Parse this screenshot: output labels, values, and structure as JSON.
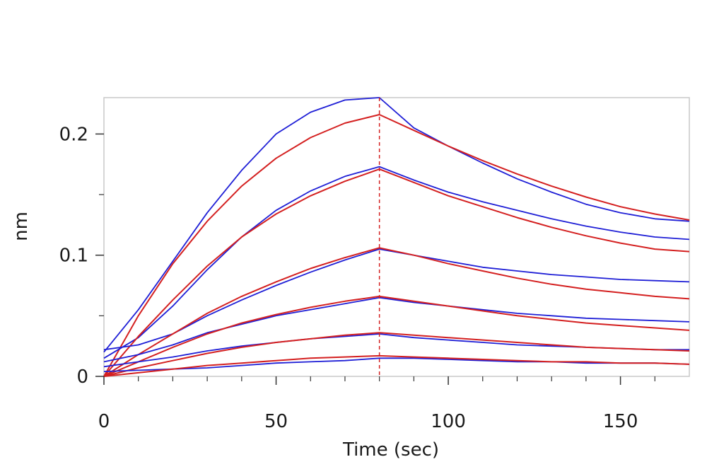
{
  "chart_data": {
    "type": "line",
    "title": "",
    "xlabel": "Time (sec)",
    "ylabel": "nm",
    "xlim": [
      0,
      170
    ],
    "ylim": [
      0,
      0.23
    ],
    "x_ticks": [
      0,
      50,
      100,
      150
    ],
    "x_tick_labels": [
      "0",
      "50",
      "100",
      "150"
    ],
    "x_minor_ticks": [
      10,
      20,
      30,
      40,
      60,
      70,
      80,
      90,
      110,
      120,
      130,
      140,
      160
    ],
    "y_ticks": [
      0,
      0.1,
      0.2
    ],
    "y_tick_labels": [
      "0",
      "0.1",
      "0.2"
    ],
    "y_minor_ticks": [
      0.05,
      0.15
    ],
    "grid": false,
    "legend": "none",
    "marker_line_x": 80,
    "colors": {
      "measured": "#1f1fd6",
      "fit": "#d42020",
      "marker": "#d42020",
      "frame": "#c8c8c8"
    },
    "series": [
      {
        "kind": "measured",
        "x": [
          0,
          10,
          20,
          30,
          40,
          50,
          60,
          70,
          80,
          90,
          100,
          110,
          120,
          130,
          140,
          150,
          160,
          170
        ],
        "values": [
          0.02,
          0.055,
          0.095,
          0.135,
          0.17,
          0.2,
          0.218,
          0.228,
          0.23,
          0.205,
          0.19,
          0.176,
          0.163,
          0.152,
          0.142,
          0.135,
          0.13,
          0.128
        ]
      },
      {
        "kind": "fit",
        "x": [
          0,
          10,
          20,
          30,
          40,
          50,
          60,
          70,
          80,
          90,
          100,
          110,
          120,
          130,
          140,
          150,
          160,
          170
        ],
        "values": [
          0.0,
          0.05,
          0.093,
          0.128,
          0.157,
          0.18,
          0.197,
          0.209,
          0.216,
          0.203,
          0.19,
          0.178,
          0.167,
          0.157,
          0.148,
          0.14,
          0.134,
          0.129
        ]
      },
      {
        "kind": "measured",
        "x": [
          0,
          10,
          20,
          30,
          40,
          50,
          60,
          70,
          80,
          90,
          100,
          110,
          120,
          130,
          140,
          150,
          160,
          170
        ],
        "values": [
          0.015,
          0.032,
          0.058,
          0.088,
          0.115,
          0.137,
          0.153,
          0.165,
          0.173,
          0.162,
          0.152,
          0.144,
          0.137,
          0.13,
          0.124,
          0.119,
          0.115,
          0.113
        ]
      },
      {
        "kind": "fit",
        "x": [
          0,
          10,
          20,
          30,
          40,
          50,
          60,
          70,
          80,
          90,
          100,
          110,
          120,
          130,
          140,
          150,
          160,
          170
        ],
        "values": [
          0.0,
          0.033,
          0.063,
          0.091,
          0.115,
          0.134,
          0.149,
          0.161,
          0.171,
          0.16,
          0.149,
          0.14,
          0.131,
          0.123,
          0.116,
          0.11,
          0.105,
          0.103
        ]
      },
      {
        "kind": "measured",
        "x": [
          0,
          10,
          20,
          30,
          40,
          50,
          60,
          70,
          80,
          90,
          100,
          110,
          120,
          130,
          140,
          150,
          160,
          170
        ],
        "values": [
          0.022,
          0.026,
          0.035,
          0.05,
          0.063,
          0.075,
          0.086,
          0.096,
          0.105,
          0.1,
          0.095,
          0.09,
          0.087,
          0.084,
          0.082,
          0.08,
          0.079,
          0.078
        ]
      },
      {
        "kind": "fit",
        "x": [
          0,
          10,
          20,
          30,
          40,
          50,
          60,
          70,
          80,
          90,
          100,
          110,
          120,
          130,
          140,
          150,
          160,
          170
        ],
        "values": [
          0.0,
          0.018,
          0.035,
          0.052,
          0.066,
          0.078,
          0.089,
          0.098,
          0.106,
          0.1,
          0.093,
          0.087,
          0.081,
          0.076,
          0.072,
          0.069,
          0.066,
          0.064
        ]
      },
      {
        "kind": "measured",
        "x": [
          0,
          10,
          20,
          30,
          40,
          50,
          60,
          70,
          80,
          90,
          100,
          110,
          120,
          130,
          140,
          150,
          160,
          170
        ],
        "values": [
          0.012,
          0.018,
          0.026,
          0.036,
          0.043,
          0.05,
          0.055,
          0.06,
          0.065,
          0.061,
          0.058,
          0.055,
          0.052,
          0.05,
          0.048,
          0.047,
          0.046,
          0.045
        ]
      },
      {
        "kind": "fit",
        "x": [
          0,
          10,
          20,
          30,
          40,
          50,
          60,
          70,
          80,
          90,
          100,
          110,
          120,
          130,
          140,
          150,
          160,
          170
        ],
        "values": [
          0.0,
          0.012,
          0.024,
          0.035,
          0.044,
          0.051,
          0.057,
          0.062,
          0.066,
          0.062,
          0.058,
          0.054,
          0.05,
          0.047,
          0.044,
          0.042,
          0.04,
          0.038
        ]
      },
      {
        "kind": "measured",
        "x": [
          0,
          10,
          20,
          30,
          40,
          50,
          60,
          70,
          80,
          90,
          100,
          110,
          120,
          130,
          140,
          150,
          160,
          170
        ],
        "values": [
          0.008,
          0.012,
          0.016,
          0.021,
          0.025,
          0.028,
          0.031,
          0.033,
          0.035,
          0.032,
          0.03,
          0.028,
          0.026,
          0.025,
          0.024,
          0.023,
          0.022,
          0.022
        ]
      },
      {
        "kind": "fit",
        "x": [
          0,
          10,
          20,
          30,
          40,
          50,
          60,
          70,
          80,
          90,
          100,
          110,
          120,
          130,
          140,
          150,
          160,
          170
        ],
        "values": [
          0.0,
          0.007,
          0.013,
          0.019,
          0.024,
          0.028,
          0.031,
          0.034,
          0.036,
          0.034,
          0.032,
          0.03,
          0.028,
          0.026,
          0.024,
          0.023,
          0.022,
          0.021
        ]
      },
      {
        "kind": "measured",
        "x": [
          0,
          10,
          20,
          30,
          40,
          50,
          60,
          70,
          80,
          90,
          100,
          110,
          120,
          130,
          140,
          150,
          160,
          170
        ],
        "values": [
          0.004,
          0.005,
          0.006,
          0.007,
          0.009,
          0.011,
          0.012,
          0.013,
          0.015,
          0.015,
          0.014,
          0.013,
          0.012,
          0.012,
          0.011,
          0.011,
          0.011,
          0.01
        ]
      },
      {
        "kind": "fit",
        "x": [
          0,
          10,
          20,
          30,
          40,
          50,
          60,
          70,
          80,
          90,
          100,
          110,
          120,
          130,
          140,
          150,
          160,
          170
        ],
        "values": [
          0.0,
          0.003,
          0.006,
          0.009,
          0.011,
          0.013,
          0.015,
          0.016,
          0.017,
          0.016,
          0.015,
          0.014,
          0.013,
          0.012,
          0.012,
          0.011,
          0.011,
          0.01
        ]
      }
    ]
  }
}
